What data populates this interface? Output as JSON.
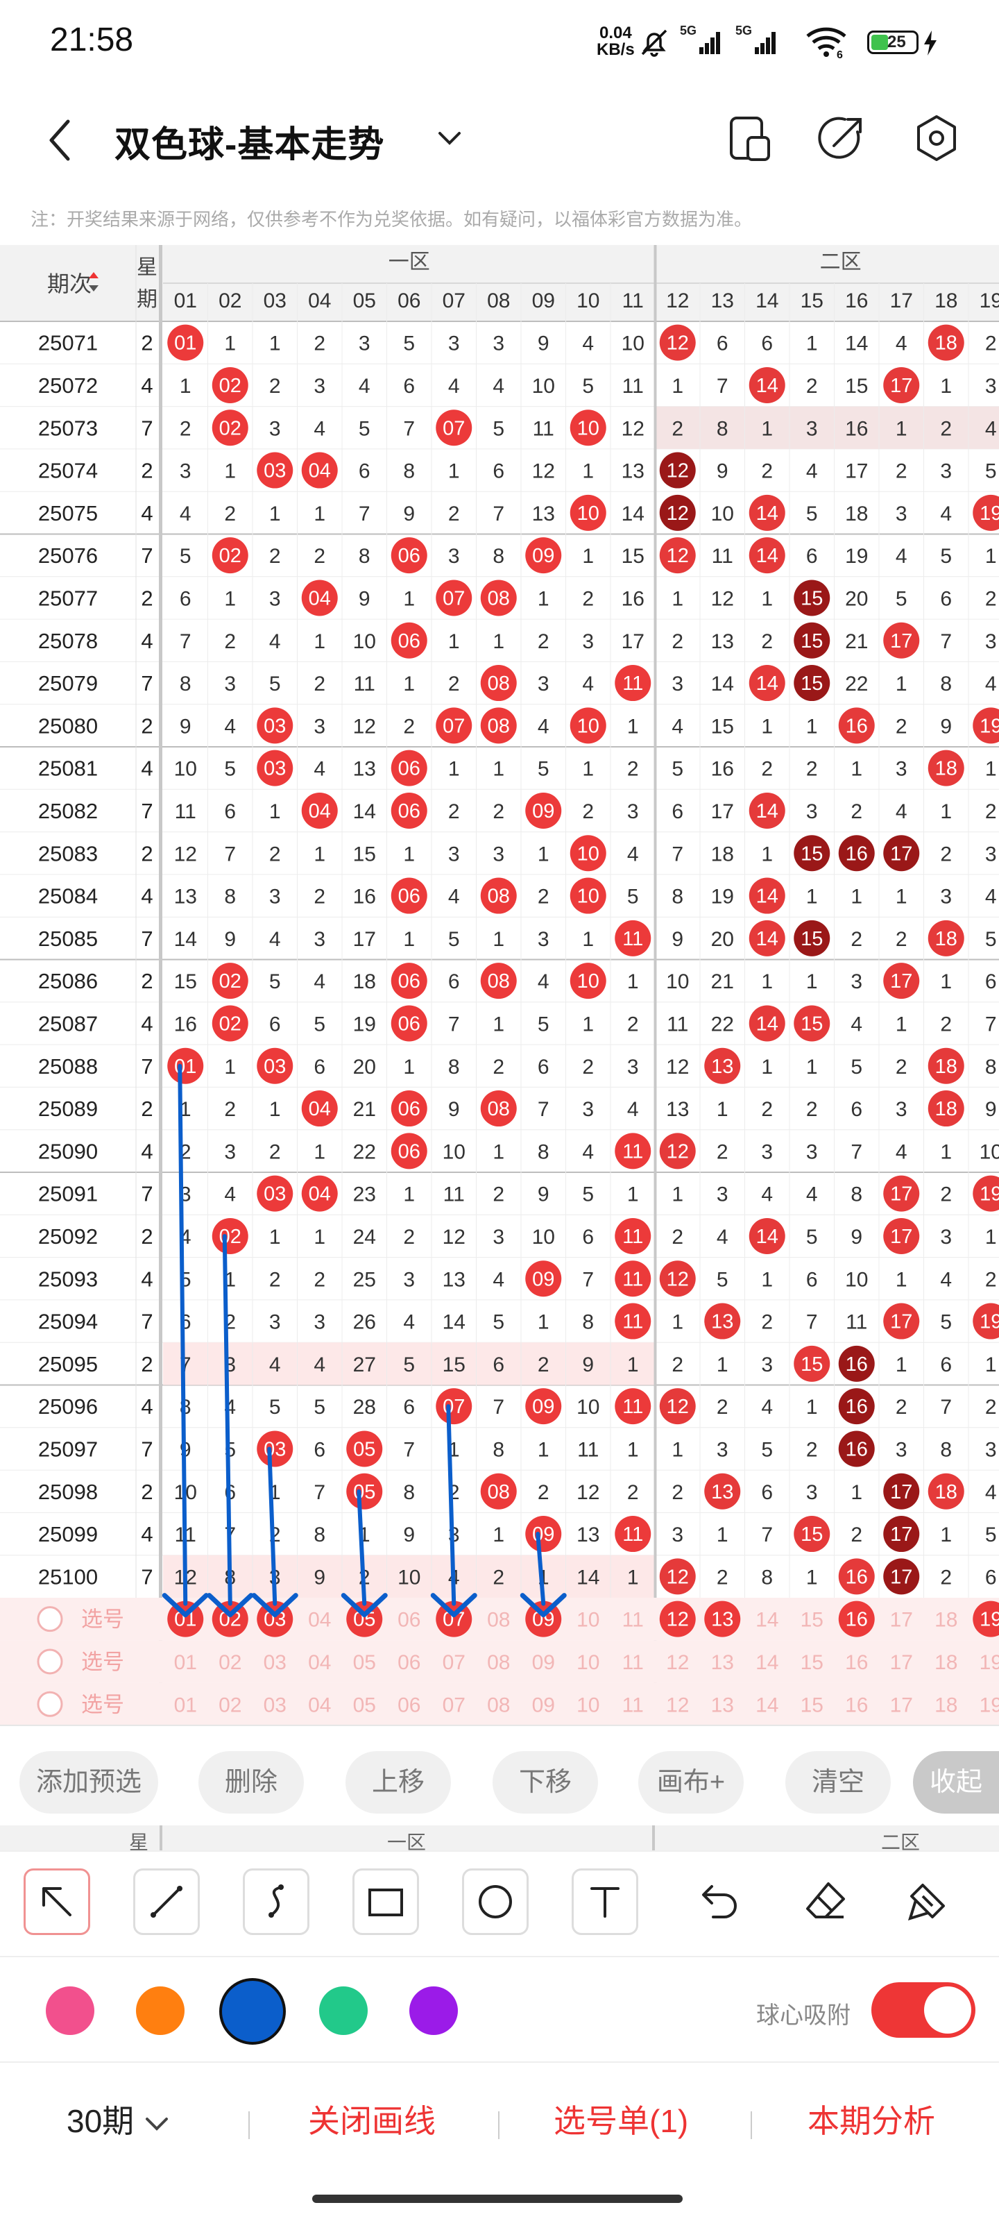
{
  "status": {
    "time": "21:58",
    "net_speed_value": "0.04",
    "net_speed_unit": "KB/s",
    "signal1": "5G",
    "signal2": "5G",
    "battery": "25"
  },
  "header": {
    "title": "双色球-基本走势"
  },
  "notice": "注：开奖结果来源于网络，仅供参考不作为兑奖依据。如有疑问，以福体彩官方数据为准。",
  "table": {
    "period_label": "期次",
    "weekday_label": "星期",
    "zone1_label": "一区",
    "zone2_label": "二区",
    "red_cols": [
      "01",
      "02",
      "03",
      "04",
      "05",
      "06",
      "07",
      "08",
      "09",
      "10",
      "11"
    ],
    "blue_cols": [
      "12",
      "13",
      "14",
      "15",
      "16",
      "17",
      "18",
      "19"
    ],
    "rows": [
      [
        "25071",
        "2",
        "01",
        1,
        1,
        2,
        3,
        5,
        3,
        3,
        9,
        4,
        10,
        "12",
        6,
        6,
        1,
        14,
        4,
        "18",
        2
      ],
      [
        "25072",
        "4",
        1,
        "02",
        2,
        3,
        4,
        6,
        4,
        4,
        10,
        5,
        11,
        1,
        7,
        "14",
        2,
        15,
        "17",
        1,
        3
      ],
      [
        "25073",
        "7",
        2,
        "02",
        3,
        4,
        5,
        7,
        "07",
        5,
        11,
        "10",
        12,
        2,
        8,
        1,
        3,
        16,
        1,
        2,
        4
      ],
      [
        "25074",
        "2",
        3,
        1,
        "03",
        "04",
        6,
        8,
        1,
        6,
        12,
        1,
        13,
        "12",
        9,
        2,
        4,
        17,
        2,
        3,
        5
      ],
      [
        "25075",
        "4",
        4,
        2,
        1,
        1,
        7,
        9,
        2,
        7,
        13,
        "10",
        14,
        "12",
        10,
        "14",
        5,
        18,
        3,
        4,
        "19"
      ],
      [
        "25076",
        "7",
        5,
        "02",
        2,
        2,
        8,
        "06",
        3,
        8,
        "09",
        1,
        15,
        "12",
        11,
        "14",
        6,
        19,
        4,
        5,
        1
      ],
      [
        "25077",
        "2",
        6,
        1,
        3,
        "04",
        9,
        1,
        "07",
        "08",
        1,
        2,
        16,
        1,
        12,
        1,
        "15",
        20,
        5,
        6,
        2
      ],
      [
        "25078",
        "4",
        7,
        2,
        4,
        1,
        10,
        "06",
        1,
        1,
        2,
        3,
        17,
        2,
        13,
        2,
        "15",
        21,
        "17",
        7,
        3
      ],
      [
        "25079",
        "7",
        8,
        3,
        5,
        2,
        11,
        1,
        2,
        "08",
        3,
        4,
        "11",
        3,
        14,
        "14",
        "15",
        22,
        1,
        8,
        4
      ],
      [
        "25080",
        "2",
        9,
        4,
        "03",
        3,
        12,
        2,
        "07",
        "08",
        4,
        "10",
        1,
        4,
        15,
        1,
        1,
        "16",
        2,
        9,
        "19"
      ],
      [
        "25081",
        "4",
        10,
        5,
        "03",
        4,
        13,
        "06",
        1,
        1,
        5,
        1,
        2,
        5,
        16,
        2,
        2,
        1,
        3,
        "18",
        1
      ],
      [
        "25082",
        "7",
        11,
        6,
        1,
        "04",
        14,
        "06",
        2,
        2,
        "09",
        2,
        3,
        6,
        17,
        "14",
        3,
        2,
        4,
        1,
        2
      ],
      [
        "25083",
        "2",
        12,
        7,
        2,
        1,
        15,
        1,
        3,
        3,
        1,
        "10",
        4,
        7,
        18,
        1,
        "15",
        "16",
        "17",
        2,
        3
      ],
      [
        "25084",
        "4",
        13,
        8,
        3,
        2,
        16,
        "06",
        4,
        "08",
        2,
        "10",
        5,
        8,
        19,
        "14",
        1,
        1,
        1,
        3,
        4
      ],
      [
        "25085",
        "7",
        14,
        9,
        4,
        3,
        17,
        1,
        5,
        1,
        3,
        1,
        "11",
        9,
        20,
        "14",
        "15",
        2,
        2,
        "18",
        5
      ],
      [
        "25086",
        "2",
        15,
        "02",
        5,
        4,
        18,
        "06",
        6,
        "08",
        4,
        "10",
        1,
        10,
        21,
        1,
        1,
        3,
        "17",
        1,
        6
      ],
      [
        "25087",
        "4",
        16,
        "02",
        6,
        5,
        19,
        "06",
        7,
        1,
        5,
        1,
        2,
        11,
        22,
        "14",
        "15",
        4,
        1,
        2,
        7
      ],
      [
        "25088",
        "7",
        "01",
        1,
        "03",
        6,
        20,
        1,
        8,
        2,
        6,
        2,
        3,
        12,
        "13",
        1,
        1,
        5,
        2,
        "18",
        8
      ],
      [
        "25089",
        "2",
        1,
        2,
        1,
        "04",
        21,
        "06",
        9,
        "08",
        7,
        3,
        4,
        13,
        1,
        2,
        2,
        6,
        3,
        "18",
        9
      ],
      [
        "25090",
        "4",
        2,
        3,
        2,
        1,
        22,
        "06",
        10,
        1,
        8,
        4,
        "11",
        "12",
        2,
        3,
        3,
        7,
        4,
        1,
        10
      ],
      [
        "25091",
        "7",
        3,
        4,
        "03",
        "04",
        23,
        1,
        11,
        2,
        9,
        5,
        1,
        1,
        3,
        4,
        4,
        8,
        "17",
        2,
        "19"
      ],
      [
        "25092",
        "2",
        4,
        "02",
        1,
        1,
        24,
        2,
        12,
        3,
        10,
        6,
        "11",
        2,
        4,
        "14",
        5,
        9,
        "17",
        3,
        1
      ],
      [
        "25093",
        "4",
        5,
        1,
        2,
        2,
        25,
        3,
        13,
        4,
        "09",
        7,
        "11",
        "12",
        5,
        1,
        6,
        10,
        1,
        4,
        2
      ],
      [
        "25094",
        "7",
        6,
        2,
        3,
        3,
        26,
        4,
        14,
        5,
        1,
        8,
        "11",
        1,
        "13",
        2,
        7,
        11,
        "17",
        5,
        "19"
      ],
      [
        "25095",
        "2",
        7,
        3,
        4,
        4,
        27,
        5,
        15,
        6,
        2,
        9,
        1,
        2,
        1,
        3,
        "15",
        "16",
        1,
        6,
        1
      ],
      [
        "25096",
        "4",
        8,
        4,
        5,
        5,
        28,
        6,
        "07",
        7,
        "09",
        10,
        "11",
        "12",
        2,
        4,
        1,
        "16",
        2,
        7,
        2
      ],
      [
        "25097",
        "7",
        9,
        5,
        "03",
        6,
        "05",
        7,
        1,
        8,
        1,
        11,
        1,
        1,
        3,
        5,
        2,
        "16",
        3,
        8,
        3
      ],
      [
        "25098",
        "2",
        10,
        6,
        1,
        7,
        "05",
        8,
        2,
        "08",
        2,
        12,
        2,
        2,
        "13",
        6,
        3,
        1,
        "17",
        "18",
        4
      ],
      [
        "25099",
        "4",
        11,
        7,
        2,
        8,
        1,
        9,
        3,
        1,
        "09",
        13,
        "11",
        3,
        1,
        7,
        "15",
        2,
        "17",
        1,
        5
      ],
      [
        "25100",
        "7",
        12,
        8,
        3,
        9,
        2,
        10,
        4,
        2,
        1,
        14,
        1,
        "12",
        2,
        8,
        1,
        "16",
        "17",
        2,
        6
      ]
    ],
    "dark_blue": [
      [
        3,
        0
      ],
      [
        4,
        0
      ],
      [
        14,
        3
      ],
      [
        14,
        4
      ],
      [
        14,
        5
      ],
      [
        17,
        5
      ],
      [
        18,
        5
      ],
      [
        19,
        4
      ],
      [
        19,
        5
      ],
      [
        26,
        10
      ],
      [
        27,
        10
      ],
      [
        28,
        10
      ],
      [
        29,
        10
      ],
      [
        6,
        3
      ],
      [
        7,
        3
      ],
      [
        8,
        3
      ],
      [
        12,
        3
      ],
      [
        12,
        4
      ],
      [
        12,
        5
      ],
      [
        24,
        4
      ],
      [
        25,
        4
      ],
      [
        26,
        4
      ],
      [
        27,
        5
      ],
      [
        28,
        5
      ],
      [
        29,
        5
      ]
    ],
    "select_label": "选号",
    "select_rows": [
      {
        "picked_red": [
          "01",
          "02",
          "03",
          "05",
          "07",
          "09"
        ],
        "picked_blue": [
          "12",
          "13",
          "16",
          "19"
        ]
      },
      {
        "picked_red": [],
        "picked_blue": []
      },
      {
        "picked_red": [],
        "picked_blue": []
      }
    ]
  },
  "actions": {
    "add_preselect": "添加预选",
    "delete": "删除",
    "move_up": "上移",
    "move_down": "下移",
    "canvas": "画布+",
    "clear": "清空",
    "collapse": "收起"
  },
  "draw": {
    "tools": [
      "arrow-tool",
      "line-tool",
      "curve-tool",
      "rectangle-tool",
      "circle-tool",
      "text-tool",
      "undo-tool",
      "eraser-tool",
      "clear-brush-tool"
    ],
    "colors": [
      "#f2508d",
      "#ff7f10",
      "#0b5ecb",
      "#22c98a",
      "#9b1be8"
    ],
    "selected_color": "#0b5ecb",
    "snap_label": "球心吸附",
    "snap_on": true,
    "arrows": [
      {
        "col": "01",
        "from": "25088",
        "to": "selection"
      },
      {
        "col": "02",
        "from": "25092",
        "to": "selection"
      },
      {
        "col": "03",
        "from": "25097",
        "to": "selection"
      },
      {
        "col": "05",
        "from": "25098",
        "to": "selection"
      },
      {
        "col": "07",
        "from": "25096",
        "to": "selection"
      },
      {
        "col": "09",
        "from": "25099",
        "to": "selection"
      }
    ]
  },
  "bottom": {
    "periods": "30期",
    "close_lines": "关闭画线",
    "selection_list": "选号单(1)",
    "analysis": "本期分析"
  }
}
